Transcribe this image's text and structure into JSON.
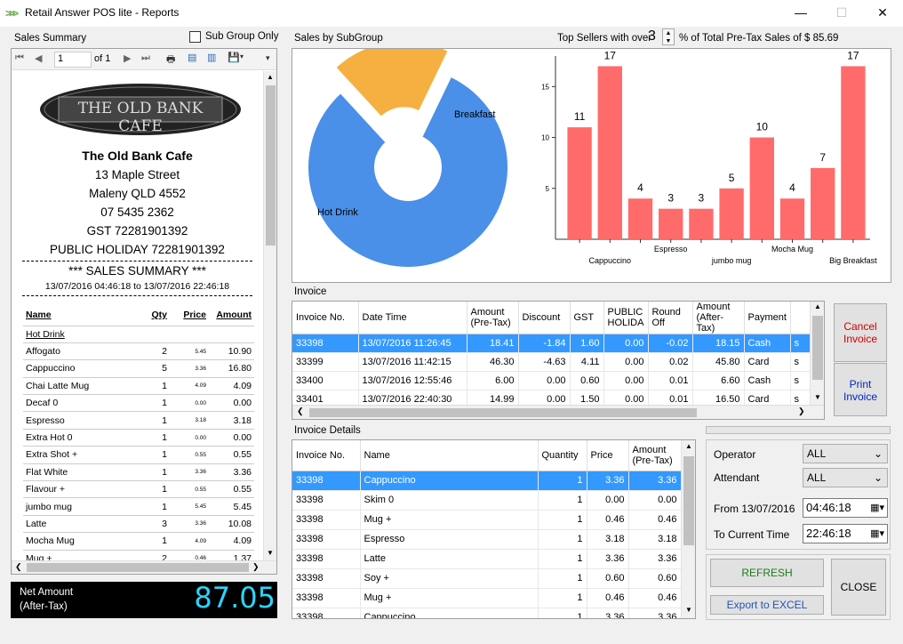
{
  "window": {
    "title": "Retail Answer POS lite - Reports",
    "minimize": "—",
    "maximize": "☐",
    "close": "✕"
  },
  "sales_summary": {
    "label": "Sales Summary",
    "sub_group_label": "Sub Group Only",
    "page_current": "1",
    "page_of": "of 1",
    "logo_text": "THE OLD BANK CAFE",
    "store_name": "The Old Bank Cafe",
    "address1": "13 Maple Street",
    "address2": "Maleny QLD 4552",
    "phone": "07 5435 2362",
    "gst": "GST 72281901392",
    "holiday": "PUBLIC HOLIDAY 72281901392",
    "heading": "***   SALES  SUMMARY   ***",
    "range": "13/07/2016 04:46:18 to 13/07/2016 22:46:18",
    "col_name": "Name",
    "col_qty": "Qty",
    "col_price": "Price",
    "col_amount": "Amount",
    "group": "Hot Drink",
    "items": [
      {
        "name": "Affogato",
        "qty": "2",
        "price": "5.45",
        "amount": "10.90"
      },
      {
        "name": "Cappuccino",
        "qty": "5",
        "price": "3.36",
        "amount": "16.80"
      },
      {
        "name": "Chai Latte Mug",
        "qty": "1",
        "price": "4.09",
        "amount": "4.09"
      },
      {
        "name": "Decaf 0",
        "qty": "1",
        "price": "0.00",
        "amount": "0.00"
      },
      {
        "name": "Espresso",
        "qty": "1",
        "price": "3.18",
        "amount": "3.18"
      },
      {
        "name": "Extra Hot 0",
        "qty": "1",
        "price": "0.00",
        "amount": "0.00"
      },
      {
        "name": "Extra Shot +",
        "qty": "1",
        "price": "0.55",
        "amount": "0.55"
      },
      {
        "name": "Flat White",
        "qty": "1",
        "price": "3.36",
        "amount": "3.36"
      },
      {
        "name": "Flavour +",
        "qty": "1",
        "price": "0.55",
        "amount": "0.55"
      },
      {
        "name": "jumbo mug",
        "qty": "1",
        "price": "5.45",
        "amount": "5.45"
      },
      {
        "name": "Latte",
        "qty": "3",
        "price": "3.36",
        "amount": "10.08"
      },
      {
        "name": "Mocha Mug",
        "qty": "1",
        "price": "4.09",
        "amount": "4.09"
      },
      {
        "name": "Mug +",
        "qty": "2",
        "price": "0.46",
        "amount": "1.37"
      }
    ]
  },
  "net_amount": {
    "label1": "Net Amount",
    "label2": "(After-Tax)",
    "value": "87.05"
  },
  "subgroup_label": "Sales by SubGroup",
  "top_sellers": {
    "prefix": "Top Sellers with over",
    "value": "3",
    "suffix": "% of Total Pre-Tax Sales of $  85.69"
  },
  "chart_data": [
    {
      "type": "pie",
      "donut": true,
      "labels": [
        "Hot Drink",
        "Breakfast"
      ],
      "values": [
        81,
        19
      ],
      "colors": [
        "#4a8fe8",
        "#f5b041"
      ]
    },
    {
      "type": "bar",
      "ylim": [
        0,
        18
      ],
      "yticks": [
        5,
        10,
        15
      ],
      "categories": [
        "",
        "Cappuccino",
        "",
        "Espresso",
        "",
        "jumbo mug",
        "",
        "Mocha Mug",
        "",
        "Big Breakfast"
      ],
      "values": [
        11,
        17,
        4,
        3,
        3,
        5,
        10,
        4,
        7,
        17
      ],
      "color": "#ff6b6b"
    }
  ],
  "invoice": {
    "label": "Invoice",
    "headers": [
      "Invoice No.",
      "Date Time",
      "Amount (Pre-Tax)",
      "Discount",
      "GST",
      "PUBLIC HOLIDA",
      "Round Off",
      "Amount (After-Tax)",
      "Payment",
      ""
    ],
    "rows": [
      [
        "33398",
        "13/07/2016 11:26:45",
        "18.41",
        "-1.84",
        "1.60",
        "0.00",
        "-0.02",
        "18.15",
        "Cash",
        "s"
      ],
      [
        "33399",
        "13/07/2016 11:42:15",
        "46.30",
        "-4.63",
        "4.11",
        "0.00",
        "0.02",
        "45.80",
        "Card",
        "s"
      ],
      [
        "33400",
        "13/07/2016 12:55:46",
        "6.00",
        "0.00",
        "0.60",
        "0.00",
        "0.01",
        "6.60",
        "Cash",
        "s"
      ],
      [
        "33401",
        "13/07/2016 22:40:30",
        "14.99",
        "0.00",
        "1.50",
        "0.00",
        "0.01",
        "16.50",
        "Card",
        "s"
      ]
    ]
  },
  "invoice_details": {
    "label": "Invoice Details",
    "headers": [
      "Invoice No.",
      "Name",
      "Quantity",
      "Price",
      "Amount (Pre-Tax)"
    ],
    "rows": [
      [
        "33398",
        "Cappuccino",
        "1",
        "3.36",
        "3.36"
      ],
      [
        "33398",
        "Skim 0",
        "1",
        "0.00",
        "0.00"
      ],
      [
        "33398",
        "Mug +",
        "1",
        "0.46",
        "0.46"
      ],
      [
        "33398",
        "Espresso",
        "1",
        "3.18",
        "3.18"
      ],
      [
        "33398",
        "Latte",
        "1",
        "3.36",
        "3.36"
      ],
      [
        "33398",
        "Soy +",
        "1",
        "0.60",
        "0.60"
      ],
      [
        "33398",
        "Mug +",
        "1",
        "0.46",
        "0.46"
      ],
      [
        "33398",
        "Cappuccino",
        "1",
        "3.36",
        "3.36"
      ]
    ]
  },
  "buttons": {
    "cancel_invoice": "Cancel Invoice",
    "print_invoice": "Print Invoice",
    "refresh": "REFRESH",
    "close": "CLOSE",
    "export": "Export to EXCEL"
  },
  "filters": {
    "operator_label": "Operator",
    "operator_value": "ALL",
    "attendant_label": "Attendant",
    "attendant_value": "ALL",
    "from_label": "From 13/07/2016",
    "from_time": "04:46:18",
    "to_label": "To Current Time",
    "to_time": "22:46:18"
  }
}
